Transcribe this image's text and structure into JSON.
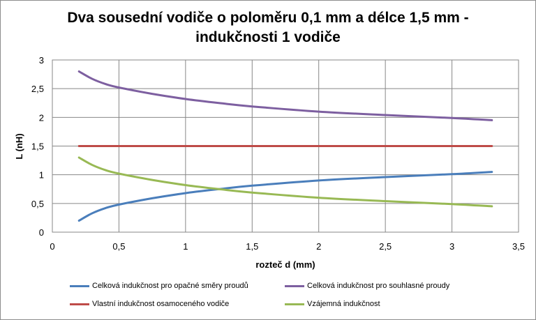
{
  "chart_data": {
    "type": "line",
    "title": [
      "Dva sousední vodiče o poloměru 0,1 mm a délce 1,5 mm -",
      "indukčnosti 1 vodiče"
    ],
    "xlabel": "rozteč d (mm)",
    "ylabel": "L (nH)",
    "xlim": [
      0,
      3.5
    ],
    "ylim": [
      0,
      3
    ],
    "xticks": [
      "0",
      "0,5",
      "1",
      "1,5",
      "2",
      "2,5",
      "3",
      "3,5"
    ],
    "yticks": [
      "0",
      "0,5",
      "1",
      "1,5",
      "2",
      "2,5",
      "3"
    ],
    "grid": true,
    "legend_position": "bottom",
    "x": [
      0.2,
      0.3,
      0.4,
      0.5,
      0.75,
      1.0,
      1.25,
      1.5,
      2.0,
      2.5,
      3.0,
      3.3
    ],
    "series": [
      {
        "name": "Celková indukčnost pro opačné směry proudů",
        "color": "#4a7ebb",
        "values": [
          0.2,
          0.33,
          0.42,
          0.48,
          0.59,
          0.68,
          0.75,
          0.81,
          0.9,
          0.96,
          1.01,
          1.05
        ]
      },
      {
        "name": "Celková indukčnost pro souhlasné proudy",
        "color": "#7d5fa0",
        "values": [
          2.8,
          2.67,
          2.58,
          2.52,
          2.41,
          2.32,
          2.25,
          2.19,
          2.1,
          2.04,
          1.99,
          1.95
        ]
      },
      {
        "name": "Vlastní indukčnost osamoceného vodiče",
        "color": "#be4b48",
        "values": [
          1.5,
          1.5,
          1.5,
          1.5,
          1.5,
          1.5,
          1.5,
          1.5,
          1.5,
          1.5,
          1.5,
          1.5
        ]
      },
      {
        "name": "Vzájemná indukčnost",
        "color": "#98b954",
        "values": [
          1.3,
          1.17,
          1.08,
          1.02,
          0.91,
          0.82,
          0.75,
          0.69,
          0.6,
          0.54,
          0.49,
          0.45
        ]
      }
    ]
  }
}
